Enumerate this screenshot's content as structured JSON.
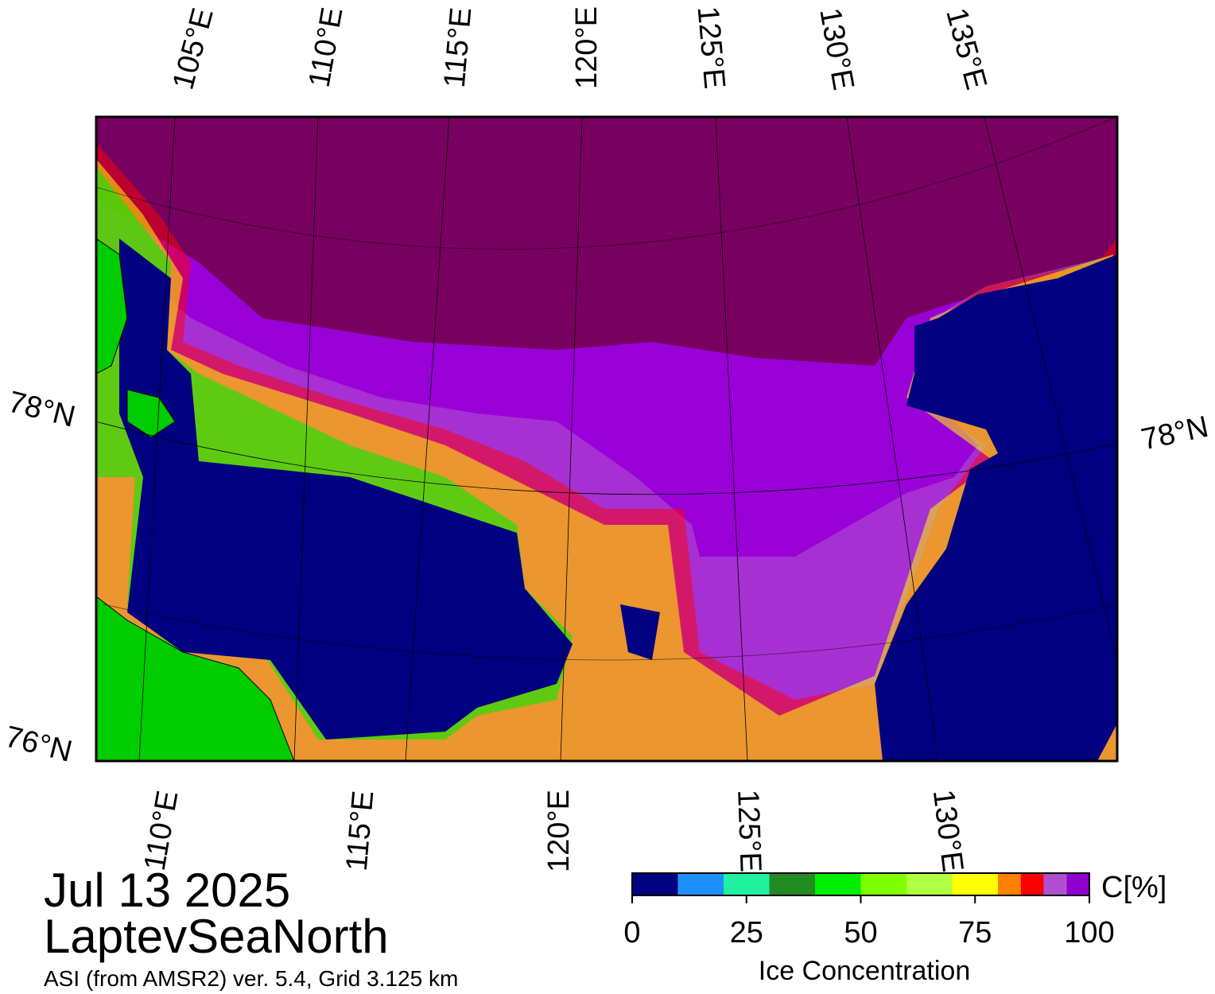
{
  "map": {
    "top_lon_labels": [
      "105°E",
      "110°E",
      "115°E",
      "120°E",
      "125°E",
      "130°E",
      "135°E"
    ],
    "bottom_lon_labels": [
      "110°E",
      "115°E",
      "120°E",
      "125°E",
      "130°E"
    ],
    "left_lat_labels": [
      "78°N",
      "76°N"
    ],
    "right_lat_labels": [
      "78°N"
    ]
  },
  "title": {
    "date": "Jul 13 2025",
    "region": "LaptevSeaNorth",
    "source": "ASI (from AMSR2) ver. 5.4,  Grid 3.125 km"
  },
  "colorbar": {
    "unit": "C[%]",
    "label": "Ice Concentration",
    "lim": [
      0,
      100
    ],
    "ticks": [
      0,
      25,
      50,
      75,
      100
    ],
    "bounds": [
      0,
      10,
      20,
      30,
      40,
      50,
      60,
      70,
      80,
      85,
      90,
      95,
      100
    ],
    "colors": [
      "#000080",
      "#1e90ff",
      "#20f0a0",
      "#228b22",
      "#00ee00",
      "#7fff00",
      "#b0ff40",
      "#ffff00",
      "#ff8000",
      "#ff0000",
      "#b050d0",
      "#9000d0"
    ]
  }
}
